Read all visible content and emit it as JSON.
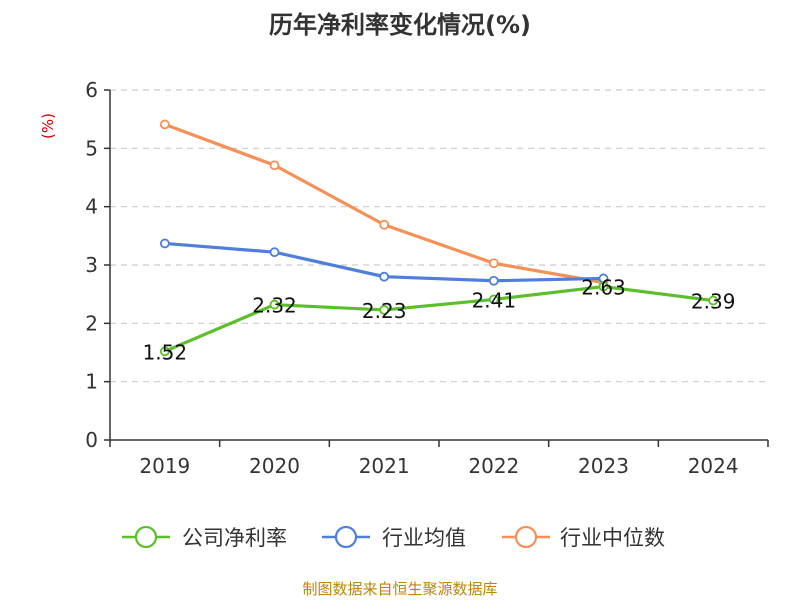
{
  "chart_data": {
    "type": "line",
    "title": "历年净利率变化情况(%)",
    "ylabel": "(%)",
    "xlabel": "",
    "ylim": [
      0,
      6
    ],
    "yticks": [
      0,
      1,
      2,
      3,
      4,
      5,
      6
    ],
    "categories": [
      "2019",
      "2020",
      "2021",
      "2022",
      "2023",
      "2024"
    ],
    "grid": true,
    "legend_position": "bottom",
    "series": [
      {
        "name": "公司净利率",
        "color": "#5cbf2a",
        "values": [
          1.52,
          2.32,
          2.23,
          2.41,
          2.63,
          2.39
        ],
        "labels": [
          "1.52",
          "2.32",
          "2.23",
          "2.41",
          "2.63",
          "2.39"
        ]
      },
      {
        "name": "行业均值",
        "color": "#4f7fd9",
        "values": [
          3.37,
          3.22,
          2.8,
          2.73,
          2.77,
          null
        ]
      },
      {
        "name": "行业中位数",
        "color": "#f59158",
        "values": [
          5.41,
          4.71,
          3.69,
          3.03,
          2.7,
          null
        ]
      }
    ]
  },
  "footer": {
    "source": "制图数据来自恒生聚源数据库"
  }
}
